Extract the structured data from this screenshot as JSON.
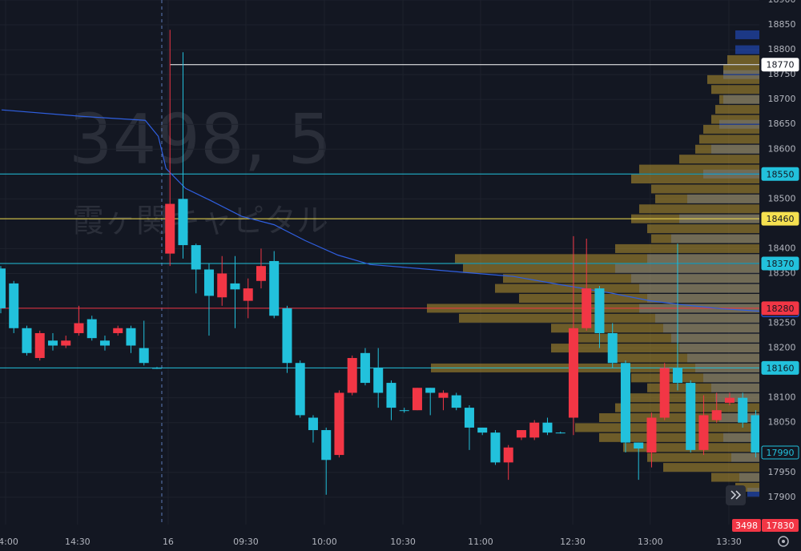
{
  "chart_data": {
    "type": "candlestick",
    "watermark": {
      "line1": "3498, 5",
      "line2": "霞ヶ関キャピタル"
    },
    "up_color": "#f23645",
    "down_color": "#22c1dc",
    "x": [
      0,
      1,
      2,
      3,
      4,
      5,
      6,
      7,
      8,
      9,
      10,
      11,
      12,
      13,
      14,
      15,
      16,
      17,
      18,
      19,
      20,
      21,
      22,
      23,
      24,
      25,
      26,
      27,
      28,
      29,
      30,
      31,
      32,
      33,
      34,
      35,
      36,
      37,
      38,
      39,
      40,
      41,
      42,
      43,
      44,
      45,
      46,
      47,
      48,
      49,
      50,
      51,
      52,
      53,
      54,
      55,
      56,
      57,
      58
    ],
    "open": [
      18360,
      18330,
      18240,
      18180,
      18215,
      18205,
      18230,
      18258,
      18215,
      18230,
      18240,
      18200,
      18160,
      18390,
      18500,
      18407,
      18358,
      18302,
      18330,
      18295,
      18335,
      18375,
      18280,
      18170,
      18060,
      18035,
      17985,
      18110,
      18190,
      18160,
      18130,
      18075,
      18075,
      18120,
      18100,
      18105,
      18080,
      18040,
      18030,
      17970,
      18020,
      18020,
      18050,
      18030,
      18060,
      18240,
      18320,
      18230,
      18170,
      18010,
      17990,
      18060,
      18160,
      18130,
      17995,
      18055,
      18090,
      18100,
      18065
    ],
    "high": [
      18365,
      18335,
      18245,
      18235,
      18230,
      18225,
      18285,
      18265,
      18225,
      18245,
      18245,
      18255,
      18162,
      18840,
      18795,
      18410,
      18370,
      18385,
      18385,
      18340,
      18400,
      18395,
      18285,
      18175,
      18065,
      18040,
      18115,
      18185,
      18200,
      18200,
      18135,
      18080,
      18120,
      18120,
      18115,
      18110,
      18085,
      18040,
      18035,
      18005,
      18035,
      18055,
      18060,
      18032,
      18425,
      18420,
      18325,
      18250,
      18175,
      18010,
      18070,
      18170,
      18410,
      18135,
      18105,
      18110,
      18110,
      18110,
      18075
    ],
    "low": [
      18270,
      18230,
      18185,
      18175,
      18195,
      18200,
      18225,
      18215,
      18195,
      18225,
      18190,
      18165,
      18158,
      18365,
      18380,
      18310,
      18225,
      18285,
      18240,
      18260,
      18320,
      18260,
      18150,
      18060,
      18010,
      17905,
      17980,
      18105,
      18125,
      18080,
      18055,
      18070,
      18075,
      18065,
      18075,
      18075,
      17995,
      18025,
      17965,
      17935,
      18015,
      18015,
      18025,
      18028,
      18025,
      18235,
      18200,
      18160,
      17990,
      17935,
      17960,
      18055,
      18115,
      17990,
      17985,
      18050,
      18085,
      18040,
      17980
    ],
    "close": [
      18280,
      18240,
      18190,
      18230,
      18205,
      18215,
      18250,
      18220,
      18205,
      18240,
      18205,
      18170,
      18160,
      18490,
      18407,
      18358,
      18305,
      18350,
      18318,
      18320,
      18365,
      18265,
      18170,
      18065,
      18035,
      17975,
      18110,
      18180,
      18130,
      18110,
      18080,
      18075,
      18120,
      18110,
      18110,
      18080,
      18040,
      18030,
      17970,
      18000,
      18035,
      18050,
      18030,
      18030,
      18240,
      18320,
      18230,
      18170,
      18010,
      17998,
      18060,
      18160,
      18130,
      17995,
      18065,
      18075,
      18100,
      18050,
      17990
    ],
    "vwap": {
      "color": "#2f5fe0",
      "x": [
        0.06,
        6.2,
        11.1,
        12.1,
        12.7,
        14.2,
        16.1,
        18.5,
        21,
        23.4,
        25.9,
        28.4,
        32.1,
        35.7,
        39.4,
        43.1,
        46.8,
        49.9,
        52.4,
        55.4,
        58.4
      ],
      "values": [
        18679,
        18666,
        18658,
        18626,
        18561,
        18521,
        18497,
        18465,
        18448,
        18416,
        18387,
        18368,
        18360,
        18352,
        18344,
        18327,
        18311,
        18295,
        18287,
        18279,
        18274
      ]
    },
    "profile_session": {
      "color": "#2962ff",
      "levels": [
        18830,
        18800,
        18750,
        18700,
        18650,
        18600,
        18550,
        18500,
        18460,
        18420,
        18380,
        18360,
        18340,
        18320,
        18300,
        18280,
        18260,
        18240,
        18220,
        18200,
        18180,
        18160,
        18140,
        18120,
        18100,
        18060,
        18020,
        17980,
        17940,
        17910
      ],
      "volumes": [
        30,
        30,
        45,
        45,
        50,
        60,
        70,
        90,
        100,
        110,
        140,
        180,
        160,
        150,
        140,
        150,
        130,
        120,
        110,
        100,
        90,
        80,
        70,
        60,
        55,
        50,
        45,
        35,
        25,
        15
      ]
    },
    "profile_visible": {
      "color": "#b8952f",
      "levels": [
        18780,
        18760,
        18740,
        18720,
        18700,
        18680,
        18660,
        18640,
        18620,
        18600,
        18580,
        18560,
        18540,
        18520,
        18500,
        18480,
        18460,
        18440,
        18420,
        18400,
        18380,
        18360,
        18340,
        18320,
        18300,
        18280,
        18260,
        18240,
        18220,
        18200,
        18180,
        18160,
        18140,
        18120,
        18100,
        18080,
        18060,
        18040,
        18020,
        18000,
        17980,
        17960,
        17940,
        17920
      ],
      "volumes": [
        40,
        45,
        65,
        60,
        50,
        55,
        60,
        70,
        75,
        80,
        100,
        150,
        160,
        135,
        130,
        150,
        160,
        140,
        135,
        180,
        380,
        370,
        320,
        330,
        300,
        415,
        375,
        260,
        230,
        260,
        180,
        410,
        160,
        140,
        170,
        180,
        200,
        230,
        200,
        170,
        140,
        120,
        60,
        30
      ]
    },
    "price_lines": [
      {
        "value": 18770,
        "color": "#ffffff",
        "line": true
      },
      {
        "value": 18550,
        "color": "#22c1dc",
        "line": true
      },
      {
        "value": 18460,
        "color": "#f5e050",
        "line": true
      },
      {
        "value": 18370,
        "color": "#22c1dc",
        "line": true
      },
      {
        "value": 18276,
        "color": "#2962ff",
        "line": false
      },
      {
        "value": 18280,
        "color": "#f23645",
        "line": true
      },
      {
        "value": 18160,
        "color": "#22c1dc",
        "line": true
      },
      {
        "value": 17990,
        "color": "#22c1dc",
        "line": false
      }
    ],
    "xlim": [
      -0.06,
      58.28
    ],
    "xticks": [
      {
        "value": 0.37,
        "label": "14:00"
      },
      {
        "value": 5.9,
        "label": "14:30"
      },
      {
        "value": 12.86,
        "label": "16"
      },
      {
        "value": 18.83,
        "label": "09:30"
      },
      {
        "value": 24.86,
        "label": "10:00"
      },
      {
        "value": 30.9,
        "label": "10:30"
      },
      {
        "value": 36.86,
        "label": "11:00"
      },
      {
        "value": 43.94,
        "label": "12:30"
      },
      {
        "value": 49.9,
        "label": "13:00"
      },
      {
        "value": 55.94,
        "label": "13:30"
      }
    ],
    "session_break": 12.37,
    "ylim": [
      17845,
      18900
    ],
    "yticks": [
      17900,
      17950,
      18050,
      18100,
      18200,
      18250,
      18350,
      18400,
      18500,
      18600,
      18650,
      18700,
      18750,
      18800,
      18850,
      18900
    ],
    "badges": [
      "3498",
      "17830"
    ]
  }
}
